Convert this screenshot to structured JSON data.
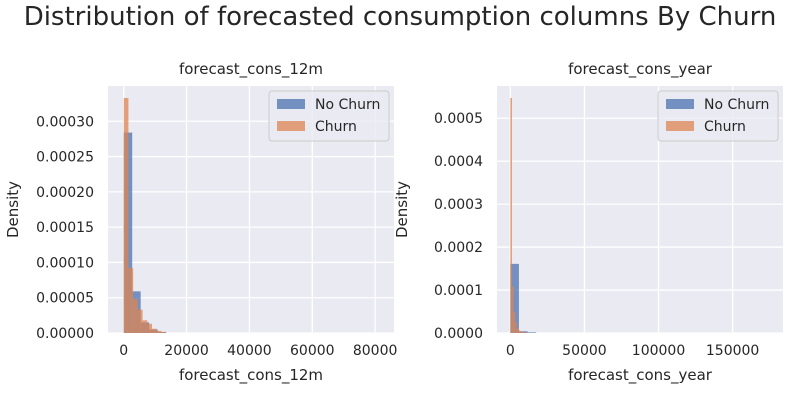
{
  "figure": {
    "title": "Distribution of forecasted consumption columns By Churn"
  },
  "chart_data": [
    {
      "type": "histogram",
      "title": "forecast_cons_12m",
      "xlabel": "forecast_cons_12m",
      "ylabel": "Density",
      "xlim": [
        -5000,
        86000
      ],
      "ylim": [
        0,
        0.00035
      ],
      "xticks": [
        0,
        20000,
        40000,
        60000,
        80000
      ],
      "xtick_labels": [
        "0",
        "20000",
        "40000",
        "60000",
        "80000"
      ],
      "yticks": [
        0,
        5e-05,
        0.0001,
        0.00015,
        0.0002,
        0.00025,
        0.0003
      ],
      "ytick_labels": [
        "0.00000",
        "0.00005",
        "0.00010",
        "0.00015",
        "0.00020",
        "0.00025",
        "0.00030"
      ],
      "grid": true,
      "legend_position": "top-right",
      "series": [
        {
          "name": "No Churn",
          "color": "#4c72b0",
          "bins": [
            {
              "x0": 0,
              "x1": 2700,
              "density": 0.000284
            },
            {
              "x0": 2700,
              "x1": 5400,
              "density": 5.9e-05
            },
            {
              "x0": 5400,
              "x1": 8100,
              "density": 1.5e-05
            },
            {
              "x0": 8100,
              "x1": 10800,
              "density": 5e-06
            },
            {
              "x0": 10800,
              "x1": 13500,
              "density": 1.5e-06
            }
          ]
        },
        {
          "name": "Churn",
          "color": "#dd8452",
          "bins": [
            {
              "x0": 0,
              "x1": 1500,
              "density": 0.000333
            },
            {
              "x0": 1500,
              "x1": 3000,
              "density": 9.2e-05
            },
            {
              "x0": 3000,
              "x1": 4500,
              "density": 4.8e-05
            },
            {
              "x0": 4500,
              "x1": 6000,
              "density": 3.3e-05
            },
            {
              "x0": 6000,
              "x1": 7500,
              "density": 1.8e-05
            },
            {
              "x0": 7500,
              "x1": 9000,
              "density": 1.3e-05
            },
            {
              "x0": 9000,
              "x1": 10500,
              "density": 6e-06
            },
            {
              "x0": 10500,
              "x1": 12000,
              "density": 3e-06
            },
            {
              "x0": 12000,
              "x1": 13500,
              "density": 1.5e-06
            }
          ]
        }
      ]
    },
    {
      "type": "histogram",
      "title": "forecast_cons_year",
      "xlabel": "forecast_cons_year",
      "ylabel": "Density",
      "xlim": [
        -9000,
        184000
      ],
      "ylim": [
        0,
        0.000575
      ],
      "xticks": [
        0,
        50000,
        100000,
        150000
      ],
      "xtick_labels": [
        "0",
        "50000",
        "100000",
        "150000"
      ],
      "yticks": [
        0,
        0.0001,
        0.0002,
        0.0003,
        0.0004,
        0.0005
      ],
      "ytick_labels": [
        "0.0000",
        "0.0001",
        "0.0002",
        "0.0003",
        "0.0004",
        "0.0005"
      ],
      "grid": true,
      "legend_position": "top-right",
      "series": [
        {
          "name": "No Churn",
          "color": "#4c72b0",
          "bins": [
            {
              "x0": 0,
              "x1": 5800,
              "density": 0.000161
            },
            {
              "x0": 5800,
              "x1": 11600,
              "density": 4e-06
            },
            {
              "x0": 11600,
              "x1": 17400,
              "density": 1.5e-06
            }
          ]
        },
        {
          "name": "Churn",
          "color": "#dd8452",
          "bins": [
            {
              "x0": 0,
              "x1": 1100,
              "density": 0.000547
            },
            {
              "x0": 1100,
              "x1": 2200,
              "density": 0.000108
            },
            {
              "x0": 2200,
              "x1": 3300,
              "density": 4.8e-05
            },
            {
              "x0": 3300,
              "x1": 4400,
              "density": 2.5e-05
            },
            {
              "x0": 4400,
              "x1": 5500,
              "density": 1.2e-05
            },
            {
              "x0": 5500,
              "x1": 6600,
              "density": 6e-06
            },
            {
              "x0": 6600,
              "x1": 7700,
              "density": 4e-06
            },
            {
              "x0": 7700,
              "x1": 8800,
              "density": 3e-06
            },
            {
              "x0": 8800,
              "x1": 9900,
              "density": 2e-06
            },
            {
              "x0": 9900,
              "x1": 11000,
              "density": 1e-06
            },
            {
              "x0": 11000,
              "x1": 12100,
              "density": 1e-06
            }
          ]
        }
      ]
    }
  ]
}
